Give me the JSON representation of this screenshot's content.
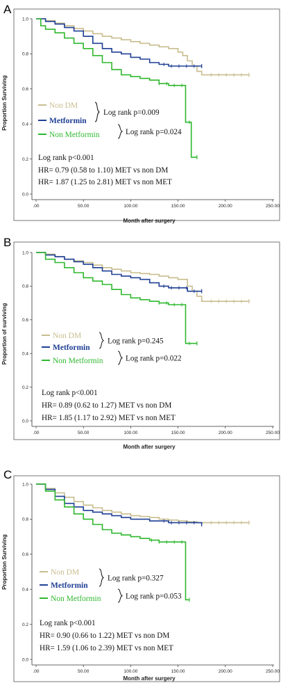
{
  "colors": {
    "nondm": "#c8bd8e",
    "metformin": "#1f3f95",
    "nonmet": "#2eb82e",
    "axis": "#333333",
    "frame": "#555555"
  },
  "chart_data": [
    {
      "type": "line",
      "panel": "A",
      "xlabel": "Month after surgery",
      "ylabel": "Proportion Surviving",
      "xlim": [
        0,
        250
      ],
      "ylim": [
        0,
        1.0
      ],
      "x_tick_labels": [
        ".00",
        "50.00",
        "100.00",
        "150.00",
        "200.00",
        "250.00"
      ],
      "y_tick_labels": [
        "0.0",
        "0.2",
        "0.4",
        "0.6",
        "0.8",
        "1.0"
      ],
      "grid": false,
      "series": [
        {
          "name": "Non DM",
          "color_key": "nondm",
          "x": [
            0,
            10,
            20,
            30,
            40,
            50,
            60,
            70,
            80,
            90,
            100,
            110,
            120,
            130,
            140,
            150,
            155,
            160,
            165,
            170,
            175,
            200,
            225
          ],
          "y": [
            1.0,
            0.99,
            0.975,
            0.96,
            0.945,
            0.93,
            0.915,
            0.9,
            0.89,
            0.88,
            0.87,
            0.86,
            0.85,
            0.84,
            0.83,
            0.81,
            0.79,
            0.76,
            0.73,
            0.7,
            0.68,
            0.68,
            0.68
          ]
        },
        {
          "name": "Metformin",
          "color_key": "metformin",
          "x": [
            0,
            10,
            20,
            30,
            40,
            50,
            60,
            70,
            80,
            90,
            100,
            110,
            120,
            130,
            140,
            160,
            175
          ],
          "y": [
            1.0,
            0.985,
            0.97,
            0.95,
            0.93,
            0.9,
            0.86,
            0.83,
            0.81,
            0.8,
            0.78,
            0.77,
            0.75,
            0.74,
            0.73,
            0.73,
            0.73
          ]
        },
        {
          "name": "Non Metformin",
          "color_key": "nonmet",
          "x": [
            0,
            5,
            10,
            20,
            30,
            40,
            50,
            60,
            70,
            80,
            90,
            100,
            110,
            120,
            130,
            140,
            150,
            158,
            158,
            164,
            164,
            170
          ],
          "y": [
            1.0,
            0.96,
            0.94,
            0.92,
            0.89,
            0.86,
            0.83,
            0.79,
            0.75,
            0.71,
            0.68,
            0.67,
            0.66,
            0.65,
            0.63,
            0.62,
            0.62,
            0.62,
            0.41,
            0.41,
            0.21,
            0.21
          ]
        }
      ],
      "legend": [
        "Non DM",
        "Metformin",
        "Non Metformin"
      ],
      "annotations": {
        "pair1": "Log rank p=0.009",
        "pair2": "Log rank p=0.024",
        "overall": "Log rank p<0.001",
        "hr1": "HR= 0.79 (0.58 to 1.10)  MET vs non DM",
        "hr2": "HR= 1.87 (1.25 to 2.81) MET vs non MET"
      }
    },
    {
      "type": "line",
      "panel": "B",
      "xlabel": "Month after surgery",
      "ylabel": "Proportion of surviving",
      "xlim": [
        0,
        250
      ],
      "ylim": [
        0,
        1.0
      ],
      "x_tick_labels": [
        ".00",
        "50.00",
        "100.00",
        "150.00",
        "200.00",
        "250.00"
      ],
      "y_tick_labels": [
        "0.0",
        "0.2",
        "0.4",
        "0.6",
        "0.8",
        "1.0"
      ],
      "grid": false,
      "series": [
        {
          "name": "Non DM",
          "color_key": "nondm",
          "x": [
            0,
            10,
            20,
            30,
            40,
            50,
            60,
            70,
            80,
            90,
            100,
            110,
            120,
            130,
            140,
            150,
            160,
            165,
            170,
            175,
            200,
            225
          ],
          "y": [
            1.0,
            0.99,
            0.975,
            0.96,
            0.95,
            0.94,
            0.925,
            0.91,
            0.9,
            0.89,
            0.88,
            0.875,
            0.87,
            0.86,
            0.85,
            0.84,
            0.8,
            0.77,
            0.74,
            0.71,
            0.71,
            0.71
          ]
        },
        {
          "name": "Metformin",
          "color_key": "metformin",
          "x": [
            0,
            10,
            20,
            30,
            40,
            50,
            60,
            70,
            80,
            90,
            100,
            110,
            120,
            130,
            140,
            160,
            175
          ],
          "y": [
            1.0,
            0.985,
            0.975,
            0.96,
            0.945,
            0.93,
            0.91,
            0.89,
            0.87,
            0.86,
            0.85,
            0.84,
            0.82,
            0.8,
            0.79,
            0.77,
            0.77
          ]
        },
        {
          "name": "Non Metformin",
          "color_key": "nonmet",
          "x": [
            0,
            10,
            20,
            30,
            40,
            50,
            60,
            70,
            80,
            90,
            100,
            110,
            120,
            130,
            140,
            158,
            158,
            170
          ],
          "y": [
            1.0,
            0.96,
            0.94,
            0.91,
            0.88,
            0.85,
            0.83,
            0.81,
            0.78,
            0.75,
            0.73,
            0.72,
            0.71,
            0.7,
            0.69,
            0.69,
            0.46,
            0.46
          ]
        }
      ],
      "legend": [
        "Non DM",
        "Metformin",
        "Non Metformin"
      ],
      "annotations": {
        "pair1": "Log rank p=0.245",
        "pair2": "Log rank p=0.022",
        "overall": "Log rank p<0.001",
        "hr1": "HR= 0.89 (0.62 to 1.27) MET vs non DM",
        "hr2": "HR= 1.85 (1.17 to 2.92) MET vs non MET"
      }
    },
    {
      "type": "line",
      "panel": "C",
      "xlabel": "Month after surgery",
      "ylabel": "Proportion Surviving",
      "xlim": [
        0,
        250
      ],
      "ylim": [
        0,
        1.0
      ],
      "x_tick_labels": [
        ".00",
        "50.00",
        "100.00",
        "150.00",
        "200.00",
        "250.00"
      ],
      "y_tick_labels": [
        "0.0",
        "0.2",
        "0.4",
        "0.6",
        "0.8",
        "1.0"
      ],
      "grid": false,
      "series": [
        {
          "name": "Non DM",
          "color_key": "nondm",
          "x": [
            0,
            10,
            20,
            30,
            40,
            50,
            60,
            70,
            80,
            90,
            100,
            110,
            120,
            130,
            140,
            150,
            160,
            170,
            175,
            200,
            225
          ],
          "y": [
            1.0,
            0.975,
            0.95,
            0.925,
            0.9,
            0.88,
            0.865,
            0.85,
            0.84,
            0.83,
            0.82,
            0.815,
            0.81,
            0.8,
            0.795,
            0.79,
            0.785,
            0.78,
            0.78,
            0.78,
            0.78
          ]
        },
        {
          "name": "Metformin",
          "color_key": "metformin",
          "x": [
            0,
            10,
            20,
            30,
            40,
            50,
            60,
            70,
            80,
            90,
            100,
            110,
            120,
            130,
            140,
            150,
            160,
            175
          ],
          "y": [
            1.0,
            0.97,
            0.93,
            0.89,
            0.87,
            0.85,
            0.84,
            0.83,
            0.82,
            0.81,
            0.8,
            0.8,
            0.79,
            0.79,
            0.78,
            0.78,
            0.78,
            0.77
          ]
        },
        {
          "name": "Non Metformin",
          "color_key": "nonmet",
          "x": [
            0,
            10,
            20,
            30,
            40,
            50,
            60,
            70,
            80,
            90,
            100,
            110,
            120,
            130,
            140,
            150,
            158,
            158,
            162
          ],
          "y": [
            1.0,
            0.96,
            0.91,
            0.87,
            0.83,
            0.8,
            0.77,
            0.74,
            0.72,
            0.71,
            0.7,
            0.69,
            0.68,
            0.67,
            0.67,
            0.67,
            0.67,
            0.34,
            0.34
          ]
        }
      ],
      "legend": [
        "Non DM",
        "Metformin",
        "Non Metformin"
      ],
      "annotations": {
        "pair1": "Log rank p=0.327",
        "pair2": "Log rank p=0.053",
        "overall": "Log rank p<0.001",
        "hr1": "HR= 0.90 (0.66 to 1.22) MET vs non DM",
        "hr2": "HR= 1.59 (1.06 to 2.39) MET vs non MET"
      }
    }
  ]
}
